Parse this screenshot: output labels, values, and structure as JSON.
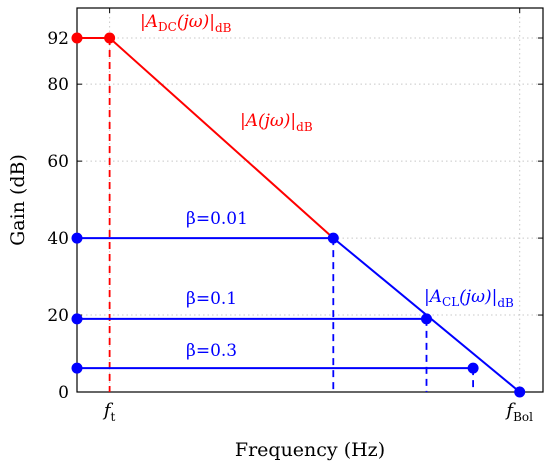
{
  "chart_data": {
    "type": "line",
    "xlabel": "Frequency (Hz)",
    "ylabel": "Gain (dB)",
    "ylim": [
      0,
      92
    ],
    "yticks": [
      0,
      20,
      40,
      60,
      80,
      92
    ],
    "xlim": [
      0,
      100
    ],
    "xticks": [
      {
        "x": 7,
        "label_main": "f",
        "label_sub": "t"
      },
      {
        "x": 95,
        "label_main": "f",
        "label_sub": "Bol"
      }
    ],
    "grid": true,
    "colors": {
      "open_loop": "#ff0000",
      "closed_loop": "#0000ff"
    },
    "open_loop": {
      "label_dc_main": "|A",
      "label_dc_sub": "DC",
      "label_dc_mid": "(jω)|",
      "label_dc_end": "dB",
      "label_main": "|A(jω)|",
      "label_sub": "dB",
      "points": [
        [
          0,
          92
        ],
        [
          7,
          92
        ],
        [
          55,
          40
        ]
      ]
    },
    "closed_loop": {
      "label_main": "|A",
      "label_sub": "CL",
      "label_mid": "(jω)|",
      "label_end": "dB",
      "rolloff": [
        [
          55,
          40
        ],
        [
          95,
          0
        ]
      ],
      "series": [
        {
          "name": "β=0.01",
          "gain": 40,
          "corner": 55
        },
        {
          "name": "β=0.1",
          "gain": 19,
          "corner": 75
        },
        {
          "name": "β=0.3",
          "gain": 6.2,
          "corner": 85
        }
      ]
    },
    "markers": [
      [
        0,
        92
      ],
      [
        7,
        92
      ],
      [
        0,
        40
      ],
      [
        55,
        40
      ],
      [
        0,
        19
      ],
      [
        75,
        19
      ],
      [
        0,
        6.2
      ],
      [
        85,
        6.2
      ],
      [
        95,
        0
      ]
    ]
  }
}
